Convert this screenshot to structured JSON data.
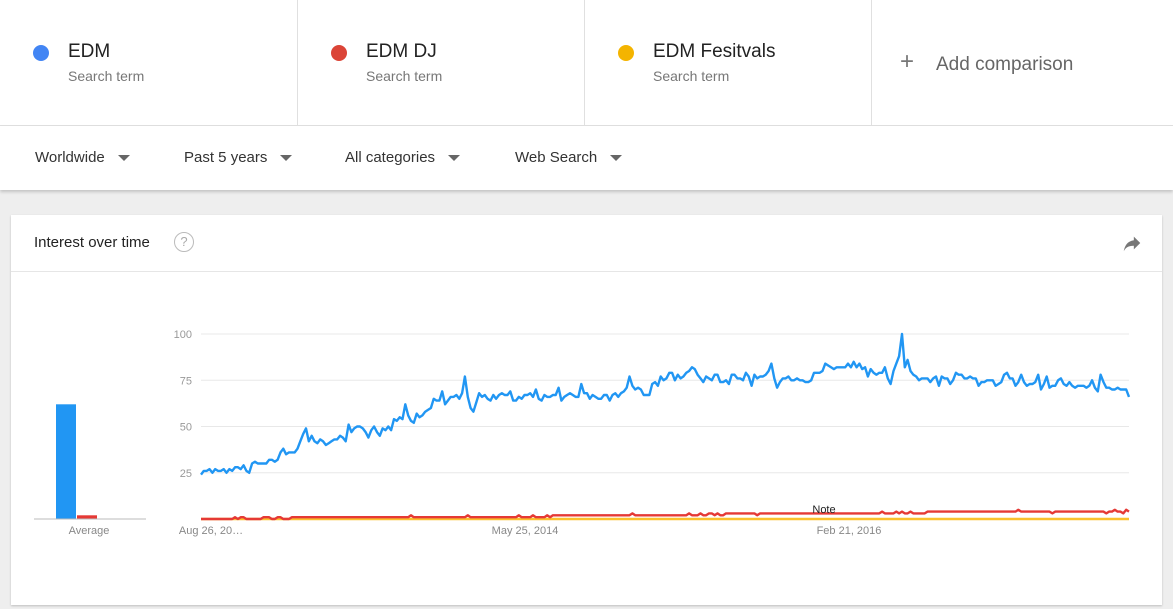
{
  "terms": [
    {
      "name": "EDM",
      "sub": "Search term",
      "color": "#4285f4"
    },
    {
      "name": "EDM DJ",
      "sub": "Search term",
      "color": "#db4437"
    },
    {
      "name": "EDM Fesitvals",
      "sub": "Search term",
      "color": "#f4b400"
    }
  ],
  "add_comparison": {
    "plus": "+",
    "label": "Add comparison"
  },
  "filters": [
    {
      "label": "Worldwide"
    },
    {
      "label": "Past 5 years"
    },
    {
      "label": "All categories"
    },
    {
      "label": "Web Search"
    }
  ],
  "card": {
    "title": "Interest over time",
    "help": "?"
  },
  "chart_data": {
    "type": "line",
    "y_ticks": [
      25,
      50,
      75,
      100
    ],
    "ylim": [
      0,
      100
    ],
    "x_tick_labels": [
      "Aug 26, 20…",
      "May 25, 2014",
      "Feb 21, 2016"
    ],
    "note_label": "Note",
    "average_label": "Average",
    "averages": [
      {
        "name": "EDM",
        "value": 62,
        "color": "#2196f3"
      },
      {
        "name": "EDM DJ",
        "value": 2,
        "color": "#e53935"
      },
      {
        "name": "EDM Fesitvals",
        "value": 0,
        "color": "#fbc02d"
      }
    ],
    "series": [
      {
        "name": "EDM",
        "color": "#2196f3",
        "values": [
          24,
          26,
          26,
          27,
          25,
          27,
          26,
          26,
          27,
          25,
          27,
          26,
          28,
          28,
          27,
          29,
          26,
          25,
          30,
          31,
          30,
          30,
          30,
          30,
          32,
          32,
          31,
          32,
          36,
          38,
          35,
          36,
          36,
          36,
          38,
          42,
          46,
          49,
          42,
          45,
          42,
          41,
          43,
          42,
          40,
          41,
          42,
          43,
          43,
          45,
          44,
          42,
          51,
          47,
          49,
          50,
          50,
          49,
          47,
          44,
          48,
          50,
          47,
          45,
          49,
          48,
          50,
          48,
          54,
          53,
          55,
          54,
          62,
          56,
          53,
          52,
          57,
          55,
          56,
          58,
          59,
          60,
          65,
          64,
          64,
          69,
          62,
          64,
          66,
          66,
          67,
          65,
          68,
          77,
          66,
          60,
          58,
          63,
          68,
          66,
          67,
          65,
          64,
          67,
          65,
          67,
          68,
          67,
          67,
          69,
          64,
          64,
          66,
          65,
          67,
          67,
          68,
          66,
          70,
          65,
          64,
          67,
          66,
          66,
          67,
          67,
          71,
          64,
          66,
          67,
          68,
          67,
          66,
          66,
          73,
          68,
          68,
          65,
          67,
          66,
          65,
          65,
          67,
          67,
          64,
          67,
          68,
          66,
          68,
          69,
          71,
          77,
          72,
          70,
          71,
          70,
          67,
          67,
          67,
          73,
          74,
          72,
          77,
          75,
          76,
          79,
          79,
          75,
          78,
          76,
          77,
          79,
          80,
          82,
          81,
          78,
          76,
          74,
          77,
          76,
          75,
          78,
          78,
          74,
          74,
          75,
          73,
          78,
          78,
          76,
          76,
          75,
          79,
          77,
          72,
          78,
          76,
          77,
          77,
          78,
          80,
          84,
          76,
          71,
          74,
          76,
          76,
          77,
          75,
          75,
          76,
          75,
          75,
          74,
          74,
          75,
          79,
          79,
          79,
          80,
          84,
          83,
          82,
          81,
          82,
          82,
          82,
          82,
          84,
          82,
          85,
          82,
          84,
          81,
          82,
          77,
          81,
          79,
          78,
          79,
          79,
          82,
          76,
          73,
          80,
          84,
          88,
          100,
          82,
          86,
          80,
          78,
          77,
          75,
          76,
          76,
          76,
          74,
          76,
          77,
          72,
          77,
          76,
          76,
          73,
          75,
          79,
          78,
          78,
          76,
          76,
          77,
          76,
          76,
          72,
          74,
          74,
          75,
          75,
          75,
          72,
          73,
          74,
          78,
          79,
          76,
          76,
          72,
          74,
          78,
          74,
          72,
          73,
          73,
          74,
          78,
          70,
          73,
          77,
          71,
          72,
          72,
          75,
          76,
          73,
          72,
          74,
          72,
          71,
          72,
          72,
          72,
          71,
          72,
          75,
          71,
          69,
          78,
          74,
          71,
          71,
          70,
          70,
          71,
          70,
          70,
          70,
          66
        ]
      },
      {
        "name": "EDM DJ",
        "color": "#e53935",
        "values": [
          0,
          0,
          0,
          0,
          0,
          0,
          0,
          0,
          0,
          0,
          0,
          0,
          1,
          0,
          1,
          1,
          0,
          0,
          0,
          0,
          0,
          0,
          1,
          1,
          1,
          0,
          0,
          1,
          1,
          0,
          0,
          0,
          1,
          1,
          1,
          1,
          1,
          1,
          1,
          1,
          1,
          1,
          1,
          1,
          1,
          1,
          1,
          1,
          1,
          1,
          1,
          1,
          1,
          1,
          1,
          1,
          1,
          1,
          1,
          1,
          1,
          1,
          1,
          1,
          1,
          1,
          1,
          1,
          1,
          1,
          1,
          1,
          1,
          1,
          2,
          1,
          1,
          1,
          1,
          1,
          1,
          1,
          1,
          1,
          1,
          1,
          1,
          1,
          1,
          1,
          1,
          1,
          1,
          1,
          2,
          1,
          1,
          1,
          1,
          1,
          1,
          1,
          1,
          1,
          1,
          1,
          1,
          1,
          1,
          1,
          1,
          1,
          2,
          1,
          1,
          1,
          1,
          2,
          1,
          1,
          1,
          1,
          2,
          1,
          2,
          2,
          2,
          2,
          2,
          2,
          2,
          2,
          2,
          2,
          2,
          2,
          2,
          2,
          2,
          2,
          2,
          2,
          2,
          2,
          2,
          2,
          2,
          2,
          2,
          2,
          2,
          2,
          3,
          2,
          2,
          2,
          2,
          2,
          2,
          2,
          2,
          2,
          2,
          2,
          2,
          2,
          2,
          2,
          2,
          2,
          2,
          2,
          3,
          2,
          2,
          2,
          3,
          2,
          2,
          3,
          3,
          2,
          3,
          2,
          2,
          3,
          3,
          3,
          3,
          3,
          3,
          3,
          3,
          3,
          3,
          3,
          2,
          3,
          3,
          3,
          3,
          3,
          3,
          3,
          3,
          3,
          3,
          3,
          3,
          3,
          3,
          3,
          3,
          3,
          3,
          3,
          3,
          3,
          3,
          3,
          3,
          3,
          3,
          3,
          3,
          3,
          3,
          3,
          3,
          3,
          3,
          3,
          3,
          3,
          3,
          3,
          3,
          3,
          3,
          3,
          4,
          3,
          3,
          3,
          3,
          4,
          3,
          4,
          3,
          3,
          4,
          3,
          3,
          3,
          3,
          3,
          4,
          4,
          4,
          4,
          4,
          4,
          4,
          4,
          4,
          4,
          4,
          4,
          4,
          4,
          4,
          4,
          4,
          4,
          4,
          4,
          4,
          4,
          4,
          4,
          4,
          4,
          4,
          4,
          4,
          4,
          4,
          4,
          5,
          4,
          4,
          4,
          4,
          4,
          4,
          4,
          4,
          4,
          4,
          4,
          3,
          4,
          4,
          4,
          4,
          4,
          4,
          4,
          4,
          4,
          4,
          4,
          4,
          4,
          4,
          4,
          4,
          4,
          4,
          3,
          4,
          4,
          5,
          4,
          4,
          3,
          5,
          4
        ]
      },
      {
        "name": "EDM Fesitvals",
        "color": "#fbc02d",
        "values": [
          0,
          0,
          0,
          0,
          0,
          0,
          0,
          0,
          0,
          0,
          0,
          0,
          0,
          0,
          0,
          0,
          0,
          0,
          0,
          0,
          0,
          0,
          0,
          0,
          0,
          0,
          0,
          0,
          0,
          0,
          0,
          0,
          0,
          0,
          0,
          0,
          0,
          0,
          0,
          0,
          0,
          0,
          0,
          0,
          0,
          0,
          0,
          0,
          0,
          0,
          0,
          0,
          0,
          0,
          0,
          0,
          0,
          0,
          0,
          0,
          0,
          0,
          0,
          0,
          0,
          0,
          0,
          0,
          0,
          0,
          0,
          0,
          0,
          0,
          0,
          0,
          0,
          0,
          0,
          0,
          0,
          0,
          0,
          0,
          0,
          0,
          0,
          0,
          0,
          0,
          0,
          0,
          0,
          0,
          0,
          0,
          0,
          0,
          0,
          0,
          0,
          0,
          0,
          0,
          0,
          0,
          0,
          0,
          0,
          0,
          0,
          0,
          0,
          0,
          0,
          0,
          0,
          0,
          0,
          0,
          0,
          0,
          0,
          0,
          0,
          0,
          0,
          0,
          0,
          0,
          0,
          0,
          0,
          0,
          0,
          0,
          0,
          0,
          0,
          0,
          0,
          0,
          0,
          0,
          0,
          0,
          0,
          0,
          0,
          0,
          0,
          0,
          0,
          0,
          0,
          0,
          0,
          0,
          0,
          0,
          0,
          0,
          0,
          0,
          0,
          0,
          0,
          0,
          0,
          0,
          0,
          0,
          0,
          0,
          0,
          0,
          0,
          0,
          0,
          0,
          0,
          0,
          0,
          0,
          0,
          0,
          0,
          0,
          0,
          0,
          0,
          0,
          0,
          0,
          0,
          0,
          0,
          0,
          0,
          0,
          0,
          0,
          0,
          0,
          0,
          0,
          0,
          0,
          0,
          0,
          0,
          0,
          0,
          0,
          0,
          0,
          0,
          0,
          0,
          0,
          0,
          0,
          0,
          0,
          0,
          0,
          0,
          0,
          0,
          0,
          0,
          0,
          0,
          0,
          0,
          0,
          0,
          0,
          0,
          0,
          0,
          0,
          0,
          0,
          0,
          0,
          0,
          0,
          0,
          0,
          0,
          0,
          0,
          0,
          0,
          0,
          0,
          0,
          0,
          0,
          0,
          0,
          0,
          0,
          0,
          0,
          0,
          0,
          0,
          0,
          0,
          0,
          0,
          0,
          0,
          0,
          0,
          0,
          0,
          0,
          0,
          0,
          0,
          0,
          0,
          0,
          0,
          0,
          0,
          0,
          0,
          0,
          0,
          0,
          0,
          0,
          0,
          0,
          0,
          0,
          0,
          0,
          0,
          0,
          0,
          0,
          0,
          0,
          0,
          0,
          0,
          0,
          0,
          0,
          0,
          0,
          0,
          0,
          0,
          0,
          0,
          0,
          0
        ]
      }
    ]
  }
}
